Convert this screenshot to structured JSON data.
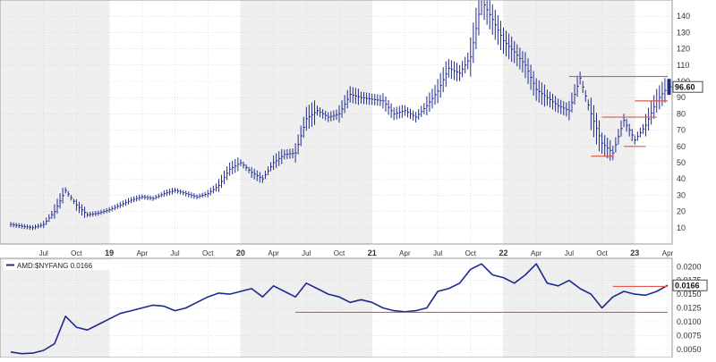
{
  "colors": {
    "series": "#1f2a8f",
    "resistance": "#e0584d",
    "price_tag_bg": "#ffffff",
    "band_light": "#ffffff",
    "band_dark": "#efefef",
    "grid": "#d2d2d2",
    "axis_text": "#333333"
  },
  "chart_data": [
    {
      "type": "line",
      "style": "ohlc-bars",
      "title": "",
      "xlabel": "",
      "ylabel": "",
      "ylim": [
        0,
        150
      ],
      "grid": true,
      "y_ticks": [
        "10",
        "20",
        "30",
        "40",
        "50",
        "60",
        "70",
        "80",
        "90",
        "100",
        "110",
        "120",
        "130",
        "140"
      ],
      "x_ticks": [
        "Jul",
        "Oct",
        "19",
        "Apr",
        "Jul",
        "Oct",
        "20",
        "Apr",
        "Jul",
        "Oct",
        "21",
        "Apr",
        "Jul",
        "Oct",
        "22",
        "Apr",
        "Jul",
        "Oct",
        "23",
        "Apr"
      ],
      "last_value_label": "96.60",
      "x": [
        "2018-04",
        "2018-05",
        "2018-06",
        "2018-07",
        "2018-08",
        "2018-09",
        "2018-10",
        "2018-11",
        "2018-12",
        "2019-01",
        "2019-02",
        "2019-03",
        "2019-04",
        "2019-05",
        "2019-06",
        "2019-07",
        "2019-08",
        "2019-09",
        "2019-10",
        "2019-11",
        "2019-12",
        "2020-01",
        "2020-02",
        "2020-03",
        "2020-04",
        "2020-05",
        "2020-06",
        "2020-07",
        "2020-08",
        "2020-09",
        "2020-10",
        "2020-11",
        "2020-12",
        "2021-01",
        "2021-02",
        "2021-03",
        "2021-04",
        "2021-05",
        "2021-06",
        "2021-07",
        "2021-08",
        "2021-09",
        "2021-10",
        "2021-11",
        "2021-12",
        "2022-01",
        "2022-02",
        "2022-03",
        "2022-04",
        "2022-05",
        "2022-06",
        "2022-07",
        "2022-08",
        "2022-09",
        "2022-10",
        "2022-11",
        "2022-12",
        "2023-01",
        "2023-02",
        "2023-03",
        "2023-04"
      ],
      "values": [
        12,
        11,
        10,
        12,
        20,
        33,
        24,
        18,
        19,
        21,
        24,
        27,
        29,
        28,
        31,
        33,
        31,
        29,
        31,
        36,
        46,
        50,
        44,
        40,
        50,
        55,
        56,
        77,
        82,
        78,
        80,
        92,
        90,
        89,
        88,
        80,
        82,
        78,
        85,
        94,
        108,
        105,
        115,
        150,
        138,
        125,
        118,
        110,
        95,
        90,
        85,
        82,
        102,
        80,
        62,
        56,
        76,
        64,
        73,
        88,
        96.6
      ],
      "annotations": [
        {
          "kind": "resistance",
          "value": 103,
          "from": "2022-07",
          "to": "2023-04"
        },
        {
          "kind": "resistance",
          "value": 88,
          "from": "2023-01",
          "to": "2023-04"
        },
        {
          "kind": "resistance",
          "value": 78,
          "from": "2022-10",
          "to": "2023-03"
        },
        {
          "kind": "support",
          "value": 60,
          "from": "2022-12",
          "to": "2023-02"
        },
        {
          "kind": "support",
          "value": 54,
          "from": "2022-09",
          "to": "2022-11"
        }
      ]
    },
    {
      "type": "line",
      "title": "AMD:$NYFANG 0.0166",
      "xlabel": "",
      "ylabel": "",
      "ylim": [
        0.0035,
        0.0215
      ],
      "grid": true,
      "y_ticks": [
        "0.0050",
        "0.0075",
        "0.0100",
        "0.0125",
        "0.0150",
        "0.0175",
        "0.0200"
      ],
      "last_value_label": "0.0166",
      "x": [
        "2018-04",
        "2018-05",
        "2018-06",
        "2018-07",
        "2018-08",
        "2018-09",
        "2018-10",
        "2018-11",
        "2018-12",
        "2019-01",
        "2019-02",
        "2019-03",
        "2019-04",
        "2019-05",
        "2019-06",
        "2019-07",
        "2019-08",
        "2019-09",
        "2019-10",
        "2019-11",
        "2019-12",
        "2020-01",
        "2020-02",
        "2020-03",
        "2020-04",
        "2020-05",
        "2020-06",
        "2020-07",
        "2020-08",
        "2020-09",
        "2020-10",
        "2020-11",
        "2020-12",
        "2021-01",
        "2021-02",
        "2021-03",
        "2021-04",
        "2021-05",
        "2021-06",
        "2021-07",
        "2021-08",
        "2021-09",
        "2021-10",
        "2021-11",
        "2021-12",
        "2022-01",
        "2022-02",
        "2022-03",
        "2022-04",
        "2022-05",
        "2022-06",
        "2022-07",
        "2022-08",
        "2022-09",
        "2022-10",
        "2022-11",
        "2022-12",
        "2023-01",
        "2023-02",
        "2023-03",
        "2023-04"
      ],
      "values": [
        0.0045,
        0.0042,
        0.0043,
        0.0048,
        0.006,
        0.011,
        0.009,
        0.0085,
        0.0095,
        0.0105,
        0.0115,
        0.012,
        0.0125,
        0.013,
        0.0128,
        0.012,
        0.0125,
        0.0135,
        0.0145,
        0.0152,
        0.015,
        0.0155,
        0.016,
        0.0145,
        0.0165,
        0.0155,
        0.0145,
        0.017,
        0.016,
        0.015,
        0.0145,
        0.0135,
        0.014,
        0.0135,
        0.0125,
        0.012,
        0.0118,
        0.012,
        0.0125,
        0.0155,
        0.016,
        0.017,
        0.0195,
        0.0205,
        0.0185,
        0.018,
        0.017,
        0.0185,
        0.0205,
        0.017,
        0.0165,
        0.0175,
        0.016,
        0.015,
        0.0125,
        0.0145,
        0.0155,
        0.015,
        0.0148,
        0.0155,
        0.0166
      ],
      "annotations": [
        {
          "kind": "support",
          "value": 0.0117,
          "from": "2020-06",
          "to": "2023-04"
        },
        {
          "kind": "resistance",
          "value": 0.0164,
          "from": "2022-11",
          "to": "2023-04"
        }
      ]
    }
  ]
}
